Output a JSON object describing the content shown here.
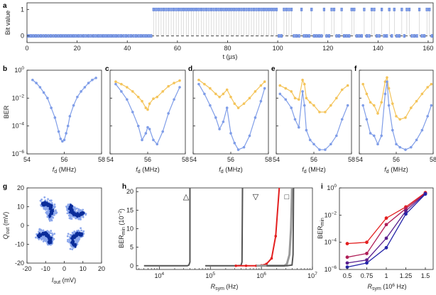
{
  "colors": {
    "blue": "#7f9de8",
    "blue_edge": "#4a6fd0",
    "yellow": "#f4c45a",
    "dark_blue": "#1f3fb8",
    "light_blue_cloud": "#8aa6ec",
    "dark_blue_cloud": "#0b2d9a",
    "gray": "#9a9a9a",
    "dark_gray": "#555555",
    "red": "#e31f1f",
    "maroon": "#b01e57",
    "purple": "#5a1e8c",
    "navy": "#2525a8"
  },
  "chart_data": [
    {
      "panel": "a",
      "type": "scatter",
      "xlabel": "t (µs)",
      "ylabel": "Bit value",
      "xlim": [
        0,
        162
      ],
      "ylim": [
        -0.25,
        1.25
      ],
      "x_ticks": [
        "0",
        "20",
        "40",
        "60",
        "80",
        "100",
        "120",
        "140",
        "160"
      ],
      "y_ticks": [
        "0",
        "1"
      ],
      "grid": false,
      "bits": [
        0,
        0,
        0,
        0,
        0,
        0,
        0,
        0,
        0,
        0,
        0,
        0,
        0,
        0,
        0,
        0,
        0,
        0,
        0,
        0,
        0,
        0,
        0,
        0,
        0,
        0,
        0,
        0,
        0,
        0,
        0,
        0,
        0,
        0,
        0,
        0,
        0,
        0,
        0,
        0,
        0,
        0,
        0,
        0,
        0,
        0,
        0,
        0,
        0,
        0,
        1,
        1,
        1,
        1,
        1,
        1,
        1,
        1,
        1,
        1,
        1,
        1,
        1,
        1,
        1,
        1,
        1,
        1,
        1,
        1,
        1,
        1,
        1,
        1,
        1,
        1,
        1,
        1,
        1,
        1,
        1,
        1,
        1,
        1,
        1,
        1,
        1,
        1,
        1,
        1,
        1,
        1,
        1,
        1,
        1,
        1,
        1,
        1,
        1,
        1,
        0,
        0,
        1,
        1,
        1,
        1,
        0,
        0,
        0,
        1,
        0,
        0,
        0,
        1,
        0,
        0,
        0,
        0,
        1,
        0,
        0,
        1,
        1,
        0,
        0,
        1,
        0,
        0,
        0,
        1,
        1,
        0,
        0,
        0,
        1,
        0,
        0,
        1,
        1,
        0,
        0,
        1,
        0,
        0,
        1,
        0,
        1,
        0,
        0,
        1,
        0,
        1,
        1,
        0,
        0,
        0,
        1,
        0,
        0,
        1,
        1,
        0
      ],
      "bit_period_us": 1
    },
    {
      "panel": "b",
      "type": "line",
      "xlabel": "fd (MHz)",
      "ylabel": "BER",
      "xlim": [
        54,
        58
      ],
      "log_y": true,
      "ylim": [
        1e-06,
        1
      ],
      "x_ticks": [
        "54",
        "56",
        "58"
      ],
      "y_ticks": [
        "10⁰",
        "10⁻²",
        "10⁻⁴",
        "10⁻⁶"
      ],
      "series": [
        {
          "color": "blue",
          "x": [
            54.3,
            54.5,
            54.7,
            54.9,
            55.1,
            55.3,
            55.5,
            55.7,
            55.8,
            55.9,
            56.0,
            56.1,
            56.2,
            56.3,
            56.5,
            56.7,
            56.9,
            57.1,
            57.3,
            57.5,
            57.7
          ],
          "y": [
            0.2,
            0.12,
            0.06,
            0.025,
            0.01,
            0.002,
            0.0004,
            4e-05,
            1.2e-05,
            8e-06,
            1e-05,
            3e-05,
            0.0001,
            0.0005,
            0.003,
            0.012,
            0.03,
            0.06,
            0.12,
            0.2,
            0.28
          ]
        }
      ]
    },
    {
      "panel": "c",
      "type": "line",
      "xlabel": "fd (MHz)",
      "xlim": [
        54,
        58
      ],
      "log_y": true,
      "ylim": [
        1e-06,
        1
      ],
      "x_ticks": [
        "54",
        "56",
        "58"
      ],
      "series": [
        {
          "color": "yellow",
          "x": [
            54.3,
            54.6,
            54.9,
            55.2,
            55.5,
            55.7,
            55.9,
            56.0,
            56.1,
            56.3,
            56.5,
            56.8,
            57.1,
            57.4,
            57.7
          ],
          "y": [
            0.15,
            0.1,
            0.06,
            0.03,
            0.012,
            0.006,
            0.002,
            0.0015,
            0.004,
            0.009,
            0.012,
            0.03,
            0.07,
            0.12,
            0.18
          ]
        },
        {
          "color": "blue",
          "x": [
            54.3,
            54.6,
            54.9,
            55.2,
            55.5,
            55.7,
            55.9,
            56.0,
            56.1,
            56.3,
            56.5,
            56.8,
            57.1,
            57.4,
            57.7
          ],
          "y": [
            0.1,
            0.03,
            0.008,
            0.001,
            0.0001,
            1e-05,
            3e-05,
            8e-05,
            6e-05,
            1e-05,
            5e-06,
            4e-05,
            0.0008,
            0.008,
            0.06
          ]
        }
      ]
    },
    {
      "panel": "d",
      "type": "line",
      "xlabel": "fd (MHz)",
      "xlim": [
        54,
        58
      ],
      "log_y": true,
      "ylim": [
        1e-06,
        1
      ],
      "x_ticks": [
        "54",
        "56",
        "58"
      ],
      "series": [
        {
          "color": "yellow",
          "x": [
            54.3,
            54.6,
            54.9,
            55.2,
            55.4,
            55.6,
            55.8,
            56.0,
            56.2,
            56.4,
            56.7,
            57.0,
            57.3,
            57.6,
            57.8
          ],
          "y": [
            0.2,
            0.1,
            0.05,
            0.02,
            0.012,
            0.02,
            0.04,
            0.012,
            0.004,
            0.002,
            0.004,
            0.01,
            0.03,
            0.08,
            0.15
          ]
        },
        {
          "color": "blue",
          "x": [
            54.3,
            54.6,
            54.9,
            55.2,
            55.4,
            55.6,
            55.8,
            56.0,
            56.2,
            56.4,
            56.7,
            57.0,
            57.3,
            57.6,
            57.8
          ],
          "y": [
            0.1,
            0.02,
            0.003,
            0.0004,
            6e-05,
            0.0002,
            0.002,
            3e-05,
            6e-06,
            2e-06,
            3e-06,
            2e-05,
            0.0004,
            0.006,
            0.05
          ]
        }
      ]
    },
    {
      "panel": "e",
      "type": "line",
      "xlabel": "fd (MHz)",
      "xlim": [
        54,
        58
      ],
      "log_y": true,
      "ylim": [
        1e-06,
        1
      ],
      "x_ticks": [
        "54",
        "56",
        "58"
      ],
      "series": [
        {
          "color": "yellow",
          "x": [
            54.2,
            54.5,
            54.8,
            55.0,
            55.2,
            55.4,
            55.5,
            55.6,
            55.8,
            56.0,
            56.3,
            56.6,
            56.9,
            57.2,
            57.5,
            57.8
          ],
          "y": [
            0.08,
            0.05,
            0.03,
            0.01,
            0.008,
            0.2,
            0.1,
            0.01,
            0.005,
            0.003,
            0.001,
            0.001,
            0.003,
            0.01,
            0.04,
            0.08
          ]
        },
        {
          "color": "blue",
          "x": [
            54.2,
            54.5,
            54.8,
            55.0,
            55.2,
            55.4,
            55.5,
            55.6,
            55.8,
            56.0,
            56.3,
            56.6,
            56.9,
            57.2,
            57.5,
            57.8
          ],
          "y": [
            0.02,
            0.008,
            0.002,
            0.0003,
            8e-05,
            0.03,
            0.003,
            5e-05,
            1e-05,
            5e-06,
            2e-06,
            2e-06,
            5e-06,
            2e-05,
            0.0003,
            0.003
          ]
        }
      ]
    },
    {
      "panel": "f",
      "type": "line",
      "xlabel": "fd (MHz)",
      "xlim": [
        54,
        58
      ],
      "log_y": true,
      "ylim": [
        1e-06,
        1
      ],
      "x_ticks": [
        "54",
        "56",
        "58"
      ],
      "series": [
        {
          "color": "yellow",
          "x": [
            54.2,
            54.4,
            54.6,
            54.8,
            55.0,
            55.2,
            55.4,
            55.5,
            55.6,
            55.8,
            56.0,
            56.2,
            56.5,
            56.8,
            57.1,
            57.4,
            57.7,
            57.9
          ],
          "y": [
            0.1,
            0.02,
            0.005,
            0.003,
            0.0008,
            0.005,
            0.15,
            0.3,
            0.05,
            0.004,
            0.0005,
            0.0003,
            0.0004,
            0.002,
            0.006,
            0.02,
            0.06,
            0.1
          ]
        },
        {
          "color": "blue",
          "x": [
            54.2,
            54.4,
            54.6,
            54.8,
            55.0,
            55.2,
            55.4,
            55.5,
            55.6,
            55.8,
            56.0,
            56.2,
            56.5,
            56.8,
            57.1,
            57.4,
            57.7,
            57.9
          ],
          "y": [
            0.003,
            0.0003,
            3e-05,
            2e-05,
            5e-06,
            2e-05,
            0.02,
            0.15,
            0.003,
            5e-05,
            5e-06,
            3e-06,
            2e-06,
            3e-06,
            1e-05,
            5e-05,
            0.0005,
            0.003
          ]
        }
      ]
    },
    {
      "panel": "g",
      "type": "scatter",
      "xlabel": "Iout (mV)",
      "ylabel": "Qout (mV)",
      "xlim": [
        -20,
        20
      ],
      "ylim": [
        -20,
        20
      ],
      "x_ticks": [
        "-20",
        "-10",
        "0",
        "10",
        "20"
      ],
      "y_ticks": [
        "-20",
        "-10",
        "0",
        "10",
        "20"
      ],
      "clusters": [
        {
          "cx": -10,
          "cy": 8,
          "arc_from": -60,
          "arc_to": 120,
          "r": 3.5
        },
        {
          "cx": 7,
          "cy": 9,
          "arc_from": 150,
          "arc_to": 330,
          "r": 3.5
        },
        {
          "cx": -11,
          "cy": -8,
          "arc_from": -30,
          "arc_to": 150,
          "r": 3.5
        },
        {
          "cx": 8,
          "cy": -8,
          "arc_from": 60,
          "arc_to": 240,
          "r": 3.5
        }
      ]
    },
    {
      "panel": "h",
      "type": "line",
      "xlabel": "Rsym (Hz)",
      "ylabel": "BERmin (10⁻²)",
      "xlim_log": [
        4,
        7
      ],
      "ylim": [
        -1,
        21
      ],
      "x_ticks": [
        "10⁴",
        "10⁵",
        "10⁶",
        "10⁷"
      ],
      "y_ticks": [
        "0",
        "5",
        "10",
        "15",
        "20"
      ],
      "markers": [
        "△",
        "▽",
        "□"
      ],
      "series": [
        {
          "color": "dark_gray",
          "logx": [
            3.7,
            4.0,
            4.3,
            4.55,
            4.58,
            4.6,
            4.6
          ],
          "y": [
            0,
            0,
            0,
            0,
            0.2,
            1,
            21
          ]
        },
        {
          "color": "dark_gray",
          "logx": [
            4.9,
            5.1,
            5.3,
            5.5,
            5.6,
            5.62,
            5.63
          ],
          "y": [
            0,
            0,
            0,
            0,
            0.1,
            1,
            21
          ]
        },
        {
          "color": "red",
          "logx": [
            5.5,
            5.7,
            5.9,
            6.0,
            6.1,
            6.2,
            6.28,
            6.35
          ],
          "y": [
            0,
            0,
            0,
            0.1,
            0.5,
            2,
            8,
            21
          ]
        },
        {
          "color": "gray",
          "logx": [
            5.9,
            6.1,
            6.3,
            6.45,
            6.5,
            6.55,
            6.58,
            6.6
          ],
          "y": [
            0,
            0,
            0,
            0,
            0.5,
            3,
            10,
            21
          ]
        },
        {
          "color": "dark_gray",
          "logx": [
            6.1,
            6.3,
            6.5,
            6.6,
            6.62,
            6.63
          ],
          "y": [
            0,
            0,
            0,
            0.2,
            3,
            21
          ]
        }
      ]
    },
    {
      "panel": "i",
      "type": "line",
      "xlabel": "Rsym (10⁶ Hz)",
      "ylabel": "BERmin",
      "xlim": [
        0.4,
        1.6
      ],
      "log_y": true,
      "ylim": [
        1e-06,
        1
      ],
      "x_ticks": [
        "0.5",
        "0.75",
        "1",
        "1.25",
        "1.5"
      ],
      "y_ticks": [
        "10⁰",
        "10⁻²",
        "10⁻⁴",
        "10⁻⁶"
      ],
      "series": [
        {
          "color": "red",
          "x": [
            0.5,
            0.75,
            1.0,
            1.25,
            1.5
          ],
          "y": [
            8e-05,
            0.0001,
            0.006,
            0.04,
            0.45
          ]
        },
        {
          "color": "maroon",
          "x": [
            0.5,
            0.75,
            1.0,
            1.25,
            1.5
          ],
          "y": [
            8e-06,
            1.5e-05,
            0.002,
            0.03,
            0.4
          ]
        },
        {
          "color": "purple",
          "x": [
            0.5,
            0.75,
            1.0,
            1.25,
            1.5
          ],
          "y": [
            3e-06,
            5e-06,
            0.0002,
            0.02,
            0.38
          ]
        },
        {
          "color": "navy",
          "x": [
            0.5,
            0.75,
            1.0,
            1.25,
            1.5
          ],
          "y": [
            1.5e-06,
            3e-06,
            4e-05,
            0.012,
            0.35
          ]
        }
      ]
    }
  ],
  "panel_labels": [
    "a",
    "b",
    "c",
    "d",
    "e",
    "f",
    "g",
    "h",
    "i"
  ]
}
